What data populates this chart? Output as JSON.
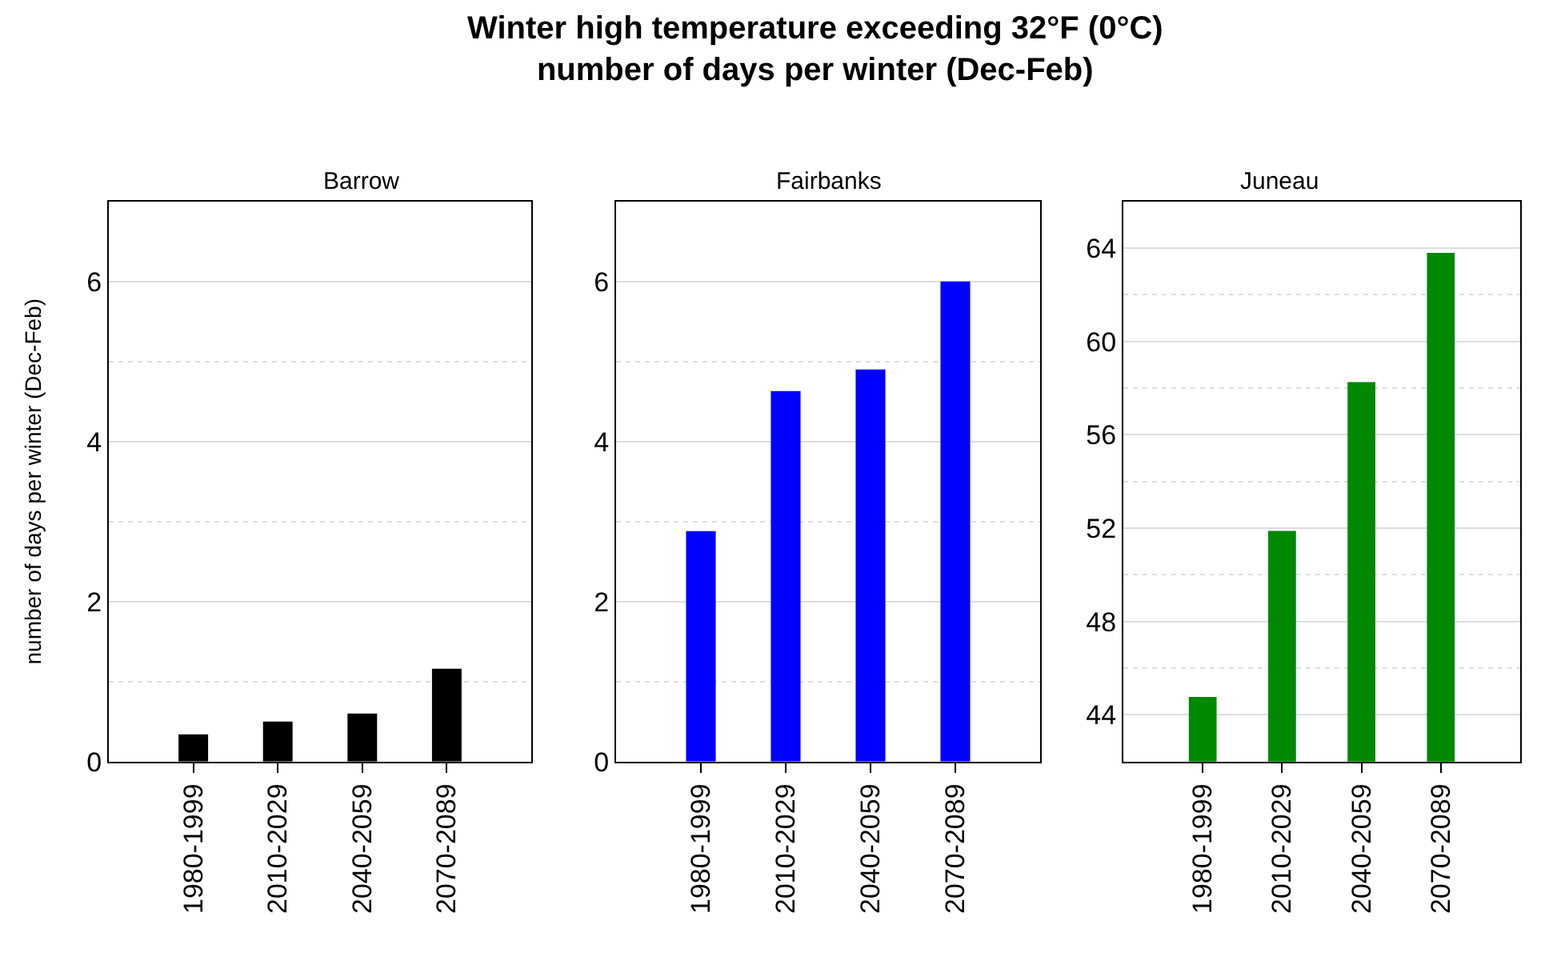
{
  "chart_data": [
    {
      "type": "other",
      "title": "Winter high temperature exceeding 32°F (0°C)\nnumber of days per winter (Dec-Feb)"
    },
    {
      "type": "bar",
      "subtitle": "Barrow",
      "ylabel": "number of days per winter (Dec-Feb)",
      "categories": [
        "1980-1999",
        "2010-2029",
        "2040-2059",
        "2070-2089"
      ],
      "values": [
        0.34,
        0.5,
        0.6,
        1.16
      ],
      "color": "#000000",
      "ylim": [
        0,
        7
      ],
      "yticks": [
        0,
        2,
        4,
        6
      ],
      "grid": "y"
    },
    {
      "type": "bar",
      "subtitle": "Fairbanks",
      "categories": [
        "1980-1999",
        "2010-2029",
        "2040-2059",
        "2070-2089"
      ],
      "values": [
        2.88,
        4.63,
        4.9,
        6.0
      ],
      "color": "#0000ff",
      "ylim": [
        0,
        7
      ],
      "yticks": [
        0,
        2,
        4,
        6
      ],
      "grid": "y"
    },
    {
      "type": "bar",
      "subtitle": "Juneau",
      "categories": [
        "1980-1999",
        "2010-2029",
        "2040-2059",
        "2070-2089"
      ],
      "values": [
        44.77,
        51.88,
        58.26,
        63.8
      ],
      "color": "#008800",
      "ylim": [
        42,
        66
      ],
      "yticks": [
        44,
        48,
        52,
        56,
        60,
        64
      ],
      "grid": "y"
    }
  ]
}
